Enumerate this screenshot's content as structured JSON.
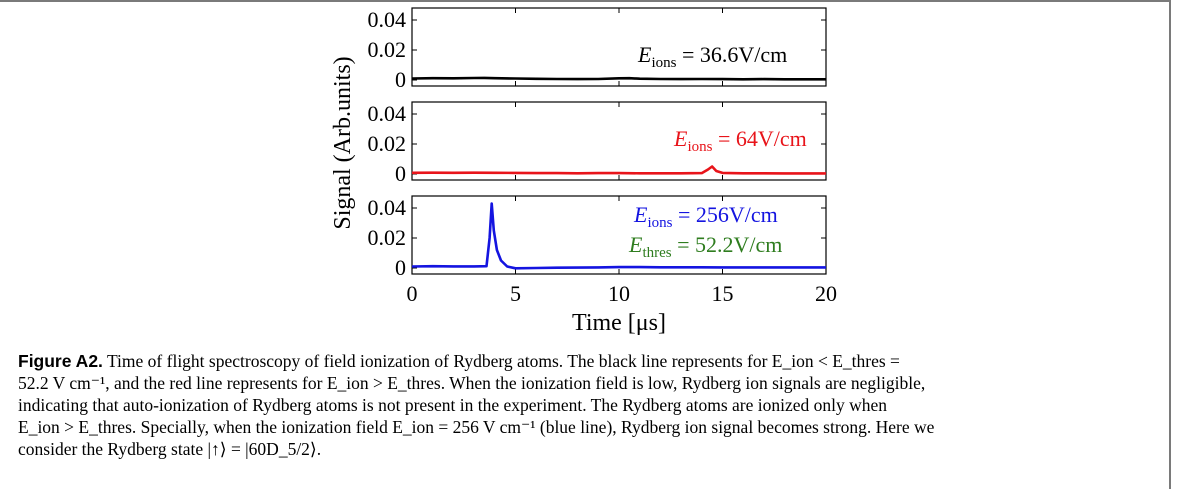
{
  "colors": {
    "panel1": "#000000",
    "panel2": "#e8141a",
    "panel3": "#1414e0",
    "annotation3b": "#2f7d1f",
    "frame": "#7a7a7a"
  },
  "chart_data": {
    "type": "line",
    "ylabel": "Signal (Arb.units)",
    "xlabel": "Time [μs]",
    "xlim": [
      0,
      20
    ],
    "xticks": [
      "0",
      "5",
      "10",
      "15",
      "20"
    ],
    "panels": [
      {
        "ylim": [
          0,
          0.045
        ],
        "yticks": [
          "0.04",
          "0.02",
          "0"
        ],
        "annotation": {
          "lhs": "E",
          "sub": "ions",
          "rhs": " = 36.6V/cm"
        },
        "series": [
          {
            "color": "#000000",
            "x": [
              0,
              1,
              2,
              3,
              3.5,
              4,
              5,
              6,
              7,
              8,
              9,
              10,
              10.5,
              11,
              12,
              13,
              14,
              15,
              16,
              17,
              18,
              19,
              20
            ],
            "y": [
              0.001,
              0.0012,
              0.0011,
              0.0013,
              0.0014,
              0.0012,
              0.001,
              0.0008,
              0.0007,
              0.0006,
              0.0007,
              0.0011,
              0.0012,
              0.0009,
              0.0007,
              0.0006,
              0.0007,
              0.0006,
              0.0005,
              0.0006,
              0.0005,
              0.0005,
              0.0005
            ]
          }
        ]
      },
      {
        "ylim": [
          0,
          0.045
        ],
        "yticks": [
          "0.04",
          "0.02",
          "0"
        ],
        "annotation": {
          "lhs": "E",
          "sub": "ions",
          "rhs": " = 64V/cm"
        },
        "series": [
          {
            "color": "#e8141a",
            "x": [
              0,
              1,
              2,
              3,
              4,
              5,
              6,
              7,
              8,
              9,
              10,
              11,
              12,
              13,
              14,
              14.3,
              14.5,
              14.7,
              15,
              16,
              17,
              18,
              19,
              20
            ],
            "y": [
              0.0008,
              0.0009,
              0.0008,
              0.0009,
              0.0008,
              0.0007,
              0.0006,
              0.0006,
              0.0005,
              0.0006,
              0.0006,
              0.0005,
              0.0005,
              0.0005,
              0.0006,
              0.003,
              0.005,
              0.002,
              0.0007,
              0.0005,
              0.0005,
              0.0004,
              0.0004,
              0.0004
            ]
          }
        ]
      },
      {
        "ylim": [
          0,
          0.045
        ],
        "yticks": [
          "0.04",
          "0.02",
          "0"
        ],
        "annotation": {
          "lhs": "E",
          "sub": "ions",
          "rhs": " = 256V/cm"
        },
        "annotation2": {
          "lhs": "E",
          "sub": "thres",
          "rhs": " = 52.2V/cm"
        },
        "series": [
          {
            "color": "#1414e0",
            "x": [
              0,
              1,
              2,
              3,
              3.6,
              3.75,
              3.85,
              3.95,
              4.1,
              4.3,
              4.6,
              5,
              6,
              7,
              8,
              9,
              10,
              11,
              12,
              13,
              14,
              15,
              16,
              17,
              18,
              19,
              20
            ],
            "y": [
              0.001,
              0.0012,
              0.0011,
              0.0011,
              0.0012,
              0.02,
              0.043,
              0.025,
              0.012,
              0.005,
              0.001,
              -0.0002,
              0,
              0.0002,
              0.0003,
              0.0004,
              0.0006,
              0.0006,
              0.0005,
              0.0005,
              0.0005,
              0.0004,
              0.0004,
              0.0004,
              0.0004,
              0.0004,
              0.0004
            ]
          }
        ]
      }
    ]
  },
  "caption": {
    "label": "Figure A2.",
    "lines": [
      " Time of flight spectroscopy of field ionization of Rydberg atoms. The black line represents for E_ion < E_thres =",
      "52.2 V cm⁻¹, and the red line represents for E_ion > E_thres. When the ionization field is low, Rydberg ion signals are negligible,",
      "indicating that auto-ionization of Rydberg atoms is not present in the experiment. The Rydberg atoms are ionized only when",
      "E_ion > E_thres. Specially, when the ionization field E_ion = 256 V cm⁻¹ (blue line), Rydberg ion signal becomes strong. Here we",
      "consider the Rydberg state |↑⟩ = |60D_5/2⟩."
    ]
  }
}
